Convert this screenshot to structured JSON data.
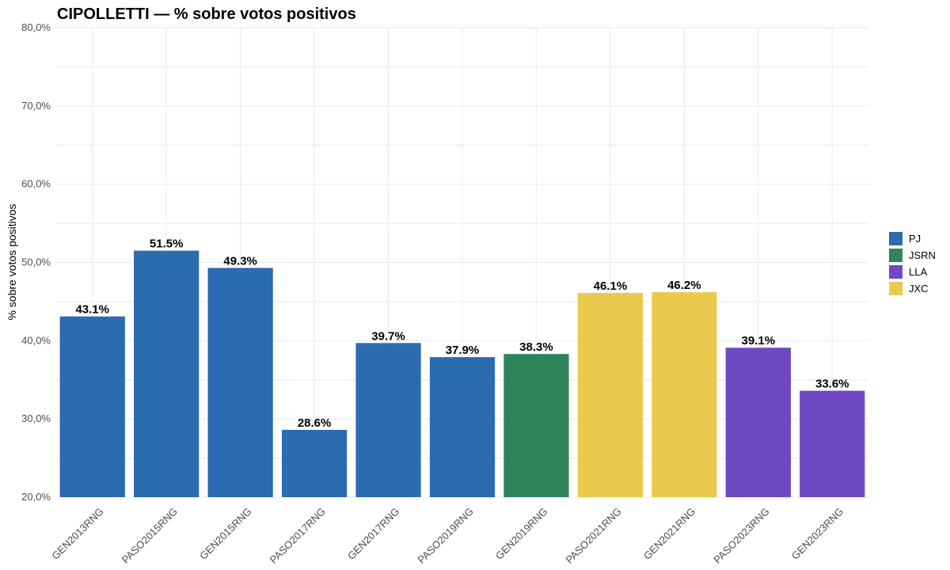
{
  "chart_data": {
    "type": "bar",
    "title": "CIPOLLETTI — % sobre votos positivos",
    "xlabel": "",
    "ylabel": "% sobre votos positivos",
    "ylim": [
      20,
      80
    ],
    "yticks": [
      20,
      30,
      40,
      50,
      60,
      70,
      80
    ],
    "ytick_labels": [
      "20,0%",
      "30,0%",
      "40,0%",
      "50,0%",
      "60,0%",
      "70,0%",
      "80,0%"
    ],
    "grid": true,
    "legend_position": "right",
    "categories": [
      "GEN2013RNG",
      "PASO2015RNG",
      "GEN2015RNG",
      "PASO2017RNG",
      "GEN2017RNG",
      "PASO2019RNG",
      "GEN2019RNG",
      "PASO2021RNG",
      "GEN2021RNG",
      "PASO2023RNG",
      "GEN2023RNG"
    ],
    "values": [
      43.1,
      51.5,
      49.3,
      28.6,
      39.7,
      37.9,
      38.3,
      46.1,
      46.2,
      39.1,
      33.6
    ],
    "value_labels": [
      "43.1%",
      "51.5%",
      "49.3%",
      "28.6%",
      "39.7%",
      "37.9%",
      "38.3%",
      "46.1%",
      "46.2%",
      "39.1%",
      "33.6%"
    ],
    "bar_party": [
      "PJ",
      "PJ",
      "PJ",
      "PJ",
      "PJ",
      "PJ",
      "JSRN",
      "JXC",
      "JXC",
      "LLA",
      "LLA"
    ],
    "legend": [
      {
        "name": "PJ",
        "color": "#2b6cb0"
      },
      {
        "name": "JSRN",
        "color": "#2e855a"
      },
      {
        "name": "LLA",
        "color": "#6e49c3"
      },
      {
        "name": "JXC",
        "color": "#eaca4d"
      }
    ]
  }
}
